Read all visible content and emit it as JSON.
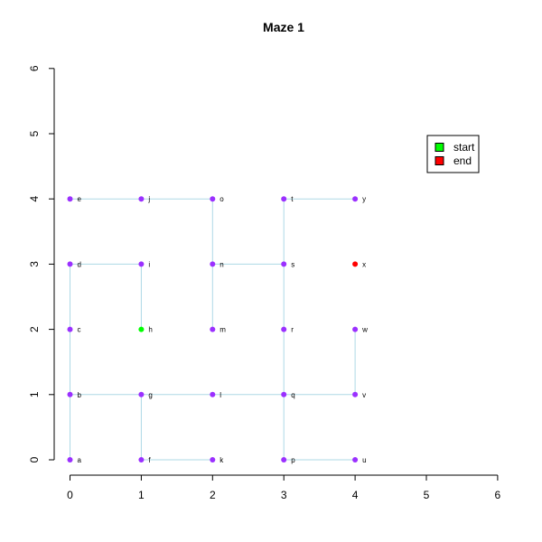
{
  "chart_data": {
    "type": "scatter",
    "title": "Maze 1",
    "xlabel": "",
    "ylabel": "",
    "xlim": [
      0,
      6
    ],
    "ylim": [
      0,
      6
    ],
    "x_ticks": [
      "0",
      "1",
      "2",
      "3",
      "4",
      "5",
      "6"
    ],
    "y_ticks": [
      "0",
      "1",
      "2",
      "3",
      "4",
      "5",
      "6"
    ],
    "grid": false,
    "legend_position": "top-right",
    "legend": [
      {
        "label": "start",
        "color": "#00ff00"
      },
      {
        "label": "end",
        "color": "#ff0000"
      }
    ],
    "node_color": "#9b30ff",
    "edge_color": "#add8e6",
    "start_node": "h",
    "end_node": "x",
    "nodes": [
      {
        "name": "a",
        "x": 0,
        "y": 0
      },
      {
        "name": "b",
        "x": 0,
        "y": 1
      },
      {
        "name": "c",
        "x": 0,
        "y": 2
      },
      {
        "name": "d",
        "x": 0,
        "y": 3
      },
      {
        "name": "e",
        "x": 0,
        "y": 4
      },
      {
        "name": "f",
        "x": 1,
        "y": 0
      },
      {
        "name": "g",
        "x": 1,
        "y": 1
      },
      {
        "name": "h",
        "x": 1,
        "y": 2
      },
      {
        "name": "i",
        "x": 1,
        "y": 3
      },
      {
        "name": "j",
        "x": 1,
        "y": 4
      },
      {
        "name": "k",
        "x": 2,
        "y": 0
      },
      {
        "name": "l",
        "x": 2,
        "y": 1
      },
      {
        "name": "m",
        "x": 2,
        "y": 2
      },
      {
        "name": "n",
        "x": 2,
        "y": 3
      },
      {
        "name": "o",
        "x": 2,
        "y": 4
      },
      {
        "name": "p",
        "x": 3,
        "y": 0
      },
      {
        "name": "q",
        "x": 3,
        "y": 1
      },
      {
        "name": "r",
        "x": 3,
        "y": 2
      },
      {
        "name": "s",
        "x": 3,
        "y": 3
      },
      {
        "name": "t",
        "x": 3,
        "y": 4
      },
      {
        "name": "u",
        "x": 4,
        "y": 0
      },
      {
        "name": "v",
        "x": 4,
        "y": 1
      },
      {
        "name": "w",
        "x": 4,
        "y": 2
      },
      {
        "name": "x",
        "x": 4,
        "y": 3
      },
      {
        "name": "y",
        "x": 4,
        "y": 4
      }
    ],
    "edges": [
      [
        "a",
        "b"
      ],
      [
        "b",
        "c"
      ],
      [
        "c",
        "d"
      ],
      [
        "d",
        "i"
      ],
      [
        "i",
        "h"
      ],
      [
        "b",
        "g"
      ],
      [
        "g",
        "f"
      ],
      [
        "f",
        "k"
      ],
      [
        "g",
        "l"
      ],
      [
        "l",
        "q"
      ],
      [
        "q",
        "p"
      ],
      [
        "p",
        "u"
      ],
      [
        "q",
        "r"
      ],
      [
        "r",
        "s"
      ],
      [
        "s",
        "t"
      ],
      [
        "t",
        "y"
      ],
      [
        "s",
        "n"
      ],
      [
        "n",
        "m"
      ],
      [
        "n",
        "o"
      ],
      [
        "o",
        "j"
      ],
      [
        "j",
        "e"
      ],
      [
        "q",
        "v"
      ],
      [
        "v",
        "w"
      ]
    ]
  }
}
